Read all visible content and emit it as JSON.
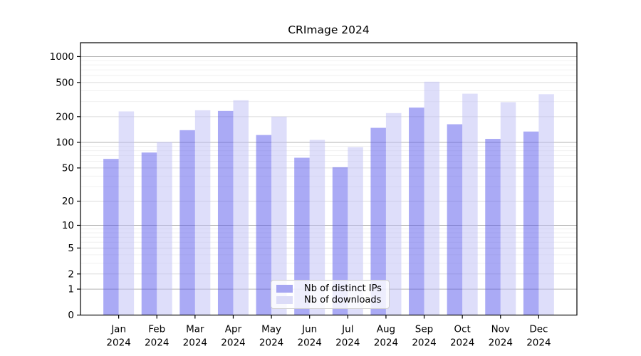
{
  "figure": {
    "title": "CRImage 2024"
  },
  "chart_data": {
    "type": "bar",
    "title": "CRImage 2024",
    "categories": [
      "Jan",
      "Feb",
      "Mar",
      "Apr",
      "May",
      "Jun",
      "Jul",
      "Aug",
      "Sep",
      "Oct",
      "Nov",
      "Dec"
    ],
    "x_year": "2024",
    "series": [
      {
        "name": "Nb of distinct IPs",
        "color": "#5555eb",
        "alpha": 0.5,
        "swatch": "#a6a6f2",
        "values": [
          64,
          76,
          139,
          233,
          122,
          66,
          51,
          148,
          255,
          163,
          110,
          134
        ]
      },
      {
        "name": "Nb of downloads",
        "color": "#bebef5",
        "alpha": 0.5,
        "swatch": "#dcdcf8",
        "values": [
          230,
          101,
          237,
          310,
          200,
          107,
          88,
          220,
          510,
          370,
          295,
          365
        ]
      }
    ],
    "y_axis": {
      "scale": "log10(value+1)",
      "tick_values": [
        0,
        1,
        2,
        5,
        10,
        20,
        50,
        100,
        200,
        500,
        1000
      ],
      "range": [
        0,
        1450
      ]
    },
    "x_axis": {
      "tick_label_format": "month newline year"
    },
    "legend": {
      "position": "lower center"
    },
    "grid": {
      "orientation": "horizontal",
      "major_color": "#b3b3b3",
      "mid_color": "#dcdcdc",
      "minor_color": "#f0f0f0"
    },
    "text_color": "#000000",
    "background": "#ffffff"
  }
}
